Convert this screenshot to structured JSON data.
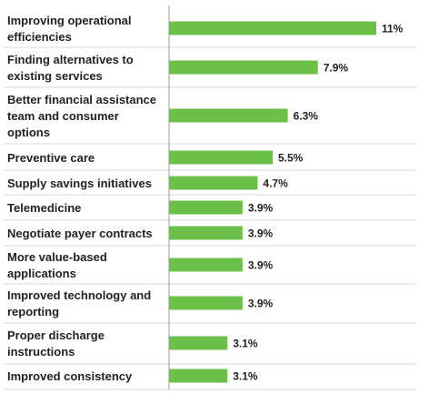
{
  "chart_data": {
    "type": "bar",
    "orientation": "horizontal",
    "categories": [
      [
        "Improving operational",
        "efficiencies"
      ],
      [
        "Finding alternatives to",
        "existing services"
      ],
      [
        "Better financial assistance",
        "team and consumer",
        "options"
      ],
      [
        "Preventive care"
      ],
      [
        "Supply savings initiatives"
      ],
      [
        "Telemedicine"
      ],
      [
        "Negotiate payer contracts"
      ],
      [
        "More value-based",
        "applications"
      ],
      [
        "Improved technology and",
        "reporting"
      ],
      [
        "Proper discharge",
        "instructions"
      ],
      [
        "Improved consistency"
      ]
    ],
    "values": [
      11,
      7.9,
      6.3,
      5.5,
      4.7,
      3.9,
      3.9,
      3.9,
      3.9,
      3.1,
      3.1
    ],
    "data_labels": [
      "11%",
      "7.9%",
      "6.3%",
      "5.5%",
      "4.7%",
      "3.9%",
      "3.9%",
      "3.9%",
      "3.9%",
      "3.1%",
      "3.1%"
    ],
    "xlim": [
      0,
      11
    ],
    "bar_color": "#6cc04a",
    "grid": false
  }
}
